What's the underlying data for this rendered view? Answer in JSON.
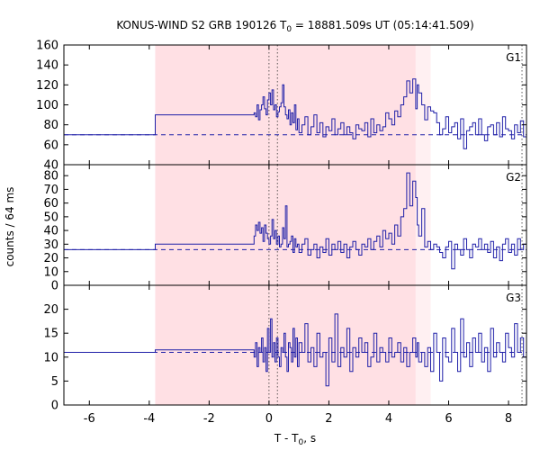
{
  "chart_data": {
    "type": "line",
    "title_main": "KONUS-WIND S2 GRB 190126 T",
    "title_sub": "0",
    "title_rest": " = 18881.509s UT (05:14:41.509)",
    "xlabel_main": "T - T",
    "xlabel_sub": "0",
    "xlabel_rest": ", s",
    "ylabel": "counts / 64 ms",
    "xlim": [
      -6.85,
      8.6
    ],
    "x_ticks": [
      -6,
      -4,
      -2,
      0,
      2,
      4,
      6,
      8
    ],
    "x_tick_labels": [
      "-6",
      "-4",
      "-2",
      "0",
      "2",
      "4",
      "6",
      "8"
    ],
    "shaded_regions": [
      {
        "x0": -3.8,
        "x1": 4.9,
        "color": "#ffe0e4"
      },
      {
        "x0": 4.9,
        "x1": 5.4,
        "color": "#fff0f2"
      }
    ],
    "vlines_dotted": [
      0.0,
      0.28,
      8.45
    ],
    "series_color": "#1f1fa8",
    "background_color": "#ffffff",
    "panels": [
      {
        "name": "G1",
        "ylim": [
          40,
          160
        ],
        "y_ticks": [
          40,
          60,
          80,
          100,
          120,
          140,
          160
        ],
        "y_tick_labels": [
          "40",
          "60",
          "80",
          "100",
          "120",
          "140",
          "160"
        ],
        "background": 70,
        "x": [
          -6.85,
          -3.8,
          -0.5,
          -0.45,
          -0.4,
          -0.35,
          -0.3,
          -0.25,
          -0.2,
          -0.15,
          -0.1,
          -0.05,
          0.0,
          0.05,
          0.1,
          0.15,
          0.2,
          0.25,
          0.3,
          0.35,
          0.4,
          0.45,
          0.5,
          0.55,
          0.6,
          0.65,
          0.7,
          0.75,
          0.8,
          0.85,
          0.9,
          0.95,
          1.0,
          1.1,
          1.2,
          1.3,
          1.4,
          1.5,
          1.6,
          1.7,
          1.8,
          1.9,
          2.0,
          2.1,
          2.2,
          2.3,
          2.4,
          2.5,
          2.6,
          2.7,
          2.8,
          2.9,
          3.0,
          3.1,
          3.2,
          3.3,
          3.4,
          3.5,
          3.6,
          3.7,
          3.8,
          3.9,
          4.0,
          4.1,
          4.2,
          4.3,
          4.4,
          4.5,
          4.6,
          4.7,
          4.8,
          4.9,
          4.95,
          5.0,
          5.1,
          5.2,
          5.3,
          5.4,
          5.5,
          5.6,
          5.7,
          5.8,
          5.9,
          6.0,
          6.1,
          6.2,
          6.3,
          6.4,
          6.5,
          6.6,
          6.7,
          6.8,
          6.9,
          7.0,
          7.1,
          7.2,
          7.3,
          7.4,
          7.5,
          7.6,
          7.7,
          7.8,
          7.9,
          8.0,
          8.1,
          8.2,
          8.3,
          8.4,
          8.5
        ],
        "y": [
          70,
          90,
          92,
          88,
          100,
          85,
          95,
          100,
          108,
          96,
          90,
          105,
          112,
          100,
          115,
          95,
          100,
          88,
          93,
          98,
          102,
          120,
          98,
          90,
          86,
          95,
          80,
          92,
          82,
          100,
          75,
          86,
          72,
          80,
          88,
          70,
          78,
          90,
          72,
          82,
          68,
          78,
          74,
          86,
          70,
          76,
          82,
          70,
          78,
          72,
          66,
          80,
          76,
          74,
          82,
          68,
          86,
          72,
          80,
          74,
          78,
          92,
          86,
          80,
          94,
          88,
          100,
          108,
          124,
          112,
          126,
          96,
          120,
          112,
          100,
          85,
          98,
          94,
          92,
          82,
          70,
          76,
          88,
          72,
          78,
          82,
          66,
          86,
          56,
          74,
          78,
          82,
          70,
          86,
          70,
          64,
          78,
          80,
          70,
          82,
          68,
          88,
          76,
          74,
          66,
          80,
          72,
          84,
          68
        ]
      },
      {
        "name": "G2",
        "ylim": [
          0,
          88
        ],
        "y_ticks": [
          0,
          10,
          20,
          30,
          40,
          50,
          60,
          70,
          80
        ],
        "y_tick_labels": [
          "0",
          "10",
          "20",
          "30",
          "40",
          "50",
          "60",
          "70",
          "80"
        ],
        "background": 26,
        "x": [
          -6.85,
          -3.8,
          -0.5,
          -0.45,
          -0.4,
          -0.35,
          -0.3,
          -0.25,
          -0.2,
          -0.15,
          -0.1,
          -0.05,
          0.0,
          0.05,
          0.1,
          0.15,
          0.2,
          0.25,
          0.3,
          0.35,
          0.4,
          0.45,
          0.5,
          0.55,
          0.6,
          0.65,
          0.7,
          0.75,
          0.8,
          0.85,
          0.9,
          0.95,
          1.0,
          1.1,
          1.2,
          1.3,
          1.4,
          1.5,
          1.6,
          1.7,
          1.8,
          1.9,
          2.0,
          2.1,
          2.2,
          2.3,
          2.4,
          2.5,
          2.6,
          2.7,
          2.8,
          2.9,
          3.0,
          3.1,
          3.2,
          3.3,
          3.4,
          3.5,
          3.6,
          3.7,
          3.8,
          3.9,
          4.0,
          4.1,
          4.2,
          4.3,
          4.4,
          4.5,
          4.6,
          4.7,
          4.8,
          4.9,
          4.95,
          5.0,
          5.1,
          5.2,
          5.3,
          5.4,
          5.5,
          5.6,
          5.7,
          5.8,
          5.9,
          6.0,
          6.1,
          6.2,
          6.3,
          6.4,
          6.5,
          6.6,
          6.7,
          6.8,
          6.9,
          7.0,
          7.1,
          7.2,
          7.3,
          7.4,
          7.5,
          7.6,
          7.7,
          7.8,
          7.9,
          8.0,
          8.1,
          8.2,
          8.3,
          8.4,
          8.5
        ],
        "y": [
          26,
          30,
          36,
          44,
          40,
          46,
          38,
          42,
          32,
          44,
          38,
          34,
          30,
          36,
          48,
          34,
          40,
          30,
          36,
          28,
          30,
          42,
          34,
          58,
          28,
          30,
          32,
          36,
          24,
          34,
          28,
          30,
          24,
          30,
          34,
          22,
          26,
          30,
          20,
          28,
          24,
          34,
          22,
          30,
          26,
          32,
          24,
          30,
          20,
          28,
          32,
          26,
          22,
          30,
          28,
          34,
          26,
          32,
          36,
          28,
          40,
          34,
          38,
          30,
          44,
          36,
          50,
          56,
          82,
          58,
          76,
          64,
          44,
          36,
          56,
          28,
          32,
          26,
          30,
          28,
          24,
          20,
          28,
          32,
          12,
          30,
          26,
          22,
          34,
          26,
          20,
          30,
          28,
          34,
          26,
          30,
          24,
          32,
          20,
          28,
          18,
          30,
          34,
          24,
          30,
          22,
          34,
          26,
          30
        ]
      },
      {
        "name": "G3",
        "ylim": [
          0,
          25
        ],
        "y_ticks": [
          0,
          5,
          10,
          15,
          20
        ],
        "y_tick_labels": [
          "0",
          "5",
          "10",
          "15",
          "20"
        ],
        "background": 11,
        "x": [
          -6.85,
          -3.8,
          -0.5,
          -0.45,
          -0.4,
          -0.35,
          -0.3,
          -0.25,
          -0.2,
          -0.15,
          -0.1,
          -0.05,
          0.0,
          0.05,
          0.1,
          0.15,
          0.2,
          0.25,
          0.3,
          0.35,
          0.4,
          0.45,
          0.5,
          0.55,
          0.6,
          0.65,
          0.7,
          0.75,
          0.8,
          0.85,
          0.9,
          0.95,
          1.0,
          1.1,
          1.2,
          1.3,
          1.4,
          1.5,
          1.6,
          1.7,
          1.8,
          1.9,
          2.0,
          2.1,
          2.2,
          2.3,
          2.4,
          2.5,
          2.6,
          2.7,
          2.8,
          2.9,
          3.0,
          3.1,
          3.2,
          3.3,
          3.4,
          3.5,
          3.6,
          3.7,
          3.8,
          3.9,
          4.0,
          4.1,
          4.2,
          4.3,
          4.4,
          4.5,
          4.6,
          4.7,
          4.8,
          4.9,
          4.95,
          5.0,
          5.1,
          5.2,
          5.3,
          5.4,
          5.5,
          5.6,
          5.7,
          5.8,
          5.9,
          6.0,
          6.1,
          6.2,
          6.3,
          6.4,
          6.5,
          6.6,
          6.7,
          6.8,
          6.9,
          7.0,
          7.1,
          7.2,
          7.3,
          7.4,
          7.5,
          7.6,
          7.7,
          7.8,
          7.9,
          8.0,
          8.1,
          8.2,
          8.3,
          8.4,
          8.5
        ],
        "y": [
          11,
          11.5,
          10,
          13,
          8,
          12,
          11,
          14,
          9,
          12,
          7,
          16,
          11,
          18,
          10,
          13,
          9,
          14,
          10,
          8,
          12,
          11,
          15,
          10,
          7,
          13,
          12,
          9,
          16,
          10,
          14,
          8,
          13,
          11,
          17,
          9,
          12,
          8,
          15,
          10,
          11,
          4,
          14,
          9,
          19,
          8,
          12,
          10,
          16,
          7,
          12,
          10,
          14,
          11,
          13,
          8,
          10,
          15,
          9,
          12,
          11,
          9,
          14,
          10,
          11,
          13,
          9,
          12,
          8,
          11,
          14,
          10,
          13,
          9,
          11,
          8,
          12,
          7,
          15,
          11,
          5,
          14,
          10,
          9,
          16,
          11,
          7,
          18,
          10,
          13,
          8,
          14,
          11,
          15,
          9,
          12,
          7,
          16,
          10,
          13,
          11,
          9,
          15,
          12,
          10,
          17,
          11,
          14,
          10
        ]
      }
    ]
  }
}
